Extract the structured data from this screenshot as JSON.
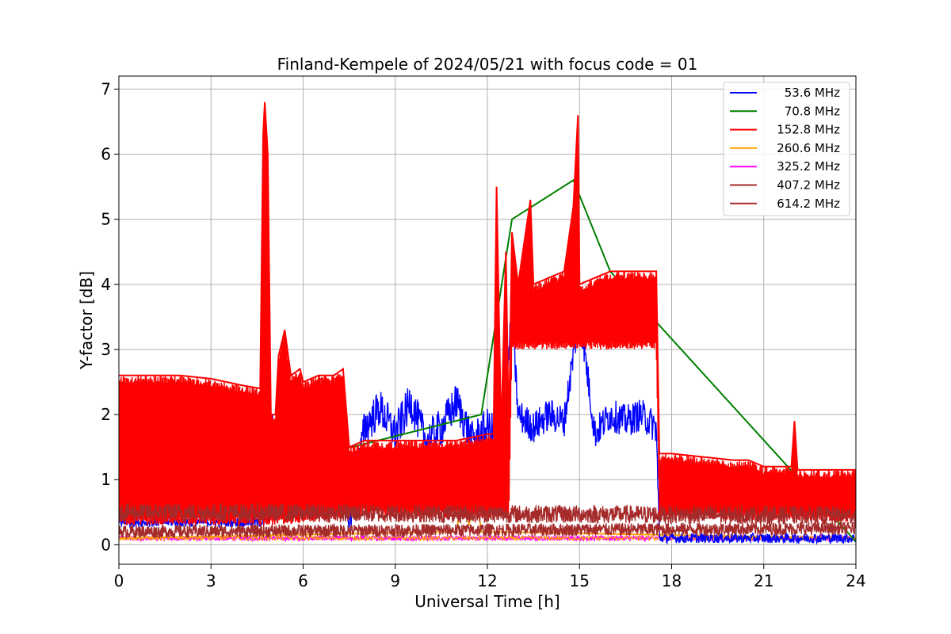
{
  "chart_data": {
    "type": "line",
    "title": "Finland-Kempele of 2024/05/21 with focus code = 01",
    "xlabel": "Universal Time [h]",
    "ylabel": "Y-factor [dB]",
    "xlim": [
      0,
      24
    ],
    "ylim": [
      -0.3,
      7.2
    ],
    "xticks": [
      0,
      3,
      6,
      9,
      12,
      15,
      18,
      21,
      24
    ],
    "yticks": [
      0,
      1,
      2,
      3,
      4,
      5,
      6,
      7
    ],
    "grid": true,
    "legend_position": "top-right",
    "series": [
      {
        "name": "53.6 MHz",
        "color": "#0000ff",
        "points": [
          [
            0.0,
            0.35
          ],
          [
            4.7,
            0.35
          ],
          [
            4.9,
            0.4
          ],
          [
            5.0,
            2.0
          ],
          [
            5.2,
            0.5
          ],
          [
            5.5,
            0.6
          ],
          [
            5.9,
            0.6
          ],
          [
            6.0,
            1.2
          ],
          [
            6.4,
            0.7
          ],
          [
            7.3,
            0.6
          ],
          [
            7.5,
            0.3
          ],
          [
            8.0,
            1.8
          ],
          [
            8.5,
            2.1
          ],
          [
            9.0,
            1.7
          ],
          [
            9.5,
            2.2
          ],
          [
            10.0,
            1.6
          ],
          [
            10.5,
            1.8
          ],
          [
            11.0,
            2.2
          ],
          [
            11.5,
            1.6
          ],
          [
            12.0,
            1.8
          ],
          [
            12.5,
            1.6
          ],
          [
            12.8,
            3.6
          ],
          [
            13.0,
            2.0
          ],
          [
            13.5,
            1.8
          ],
          [
            14.0,
            2.0
          ],
          [
            14.5,
            1.9
          ],
          [
            15.0,
            3.6
          ],
          [
            15.5,
            1.7
          ],
          [
            16.0,
            2.0
          ],
          [
            16.5,
            1.9
          ],
          [
            17.0,
            2.0
          ],
          [
            17.5,
            1.8
          ],
          [
            17.6,
            0.1
          ],
          [
            24.0,
            0.1
          ]
        ]
      },
      {
        "name": "70.8 MHz",
        "color": "#008000",
        "points": [
          [
            4.8,
            1.6
          ],
          [
            5.9,
            1.3
          ],
          [
            11.8,
            2.0
          ],
          [
            12.8,
            5.0
          ],
          [
            14.8,
            5.6
          ],
          [
            16.0,
            4.2
          ],
          [
            24.0,
            0.05
          ]
        ]
      },
      {
        "name": "152.8 MHz",
        "color": "#ff0000",
        "upper": [
          [
            0.0,
            2.6
          ],
          [
            1.0,
            2.6
          ],
          [
            2.0,
            2.6
          ],
          [
            3.0,
            2.55
          ],
          [
            4.0,
            2.45
          ],
          [
            4.6,
            2.4
          ],
          [
            4.7,
            6.3
          ],
          [
            4.75,
            6.8
          ],
          [
            4.85,
            6.0
          ],
          [
            4.95,
            2.0
          ],
          [
            5.1,
            2.0
          ],
          [
            5.2,
            2.9
          ],
          [
            5.4,
            3.3
          ],
          [
            5.6,
            2.6
          ],
          [
            5.9,
            2.7
          ],
          [
            6.0,
            2.5
          ],
          [
            6.5,
            2.6
          ],
          [
            7.0,
            2.6
          ],
          [
            7.3,
            2.7
          ],
          [
            7.5,
            1.5
          ],
          [
            8.0,
            1.6
          ],
          [
            9.0,
            1.6
          ],
          [
            10.0,
            1.6
          ],
          [
            11.0,
            1.6
          ],
          [
            12.0,
            1.7
          ],
          [
            12.2,
            1.7
          ],
          [
            12.3,
            5.5
          ],
          [
            12.45,
            1.7
          ],
          [
            12.6,
            4.5
          ],
          [
            12.7,
            1.7
          ],
          [
            12.8,
            4.8
          ],
          [
            13.0,
            4.0
          ],
          [
            13.4,
            5.3
          ],
          [
            13.5,
            4.0
          ],
          [
            14.0,
            4.1
          ],
          [
            14.5,
            4.2
          ],
          [
            14.8,
            5.2
          ],
          [
            14.95,
            6.6
          ],
          [
            15.0,
            4.0
          ],
          [
            15.5,
            4.1
          ],
          [
            16.0,
            4.2
          ],
          [
            16.5,
            4.2
          ],
          [
            17.0,
            4.2
          ],
          [
            17.5,
            4.2
          ],
          [
            17.6,
            1.4
          ],
          [
            18.0,
            1.4
          ],
          [
            19.0,
            1.35
          ],
          [
            20.0,
            1.3
          ],
          [
            20.5,
            1.3
          ],
          [
            21.0,
            1.2
          ],
          [
            21.9,
            1.2
          ],
          [
            22.0,
            1.9
          ],
          [
            22.1,
            1.15
          ],
          [
            23.0,
            1.15
          ],
          [
            24.0,
            1.15
          ]
        ],
        "lower": [
          [
            0.0,
            0.3
          ],
          [
            4.7,
            0.3
          ],
          [
            4.95,
            0.3
          ],
          [
            5.2,
            0.3
          ],
          [
            7.3,
            0.4
          ],
          [
            7.5,
            0.45
          ],
          [
            12.2,
            0.4
          ],
          [
            12.7,
            0.4
          ],
          [
            12.8,
            3.0
          ],
          [
            15.0,
            3.0
          ],
          [
            17.5,
            3.0
          ],
          [
            17.6,
            0.4
          ],
          [
            24.0,
            0.35
          ]
        ]
      },
      {
        "name": "260.6 MHz",
        "color": "#ffa500",
        "points": [
          [
            0.0,
            0.1
          ],
          [
            11.0,
            0.2
          ],
          [
            11.3,
            1.3
          ],
          [
            11.4,
            0.3
          ],
          [
            11.6,
            0.9
          ],
          [
            11.8,
            0.2
          ],
          [
            24.0,
            0.1
          ]
        ]
      },
      {
        "name": "325.2 MHz",
        "color": "#ff00ff",
        "points": [
          [
            0.0,
            0.1
          ],
          [
            24.0,
            0.1
          ]
        ]
      },
      {
        "name": "407.2 MHz",
        "color": "#a52a2a",
        "points": [
          [
            0.0,
            0.2
          ],
          [
            24.0,
            0.25
          ]
        ]
      },
      {
        "name": "614.2 MHz",
        "color": "#a52a2a",
        "points": [
          [
            0.0,
            0.5
          ],
          [
            24.0,
            0.45
          ]
        ]
      }
    ]
  }
}
